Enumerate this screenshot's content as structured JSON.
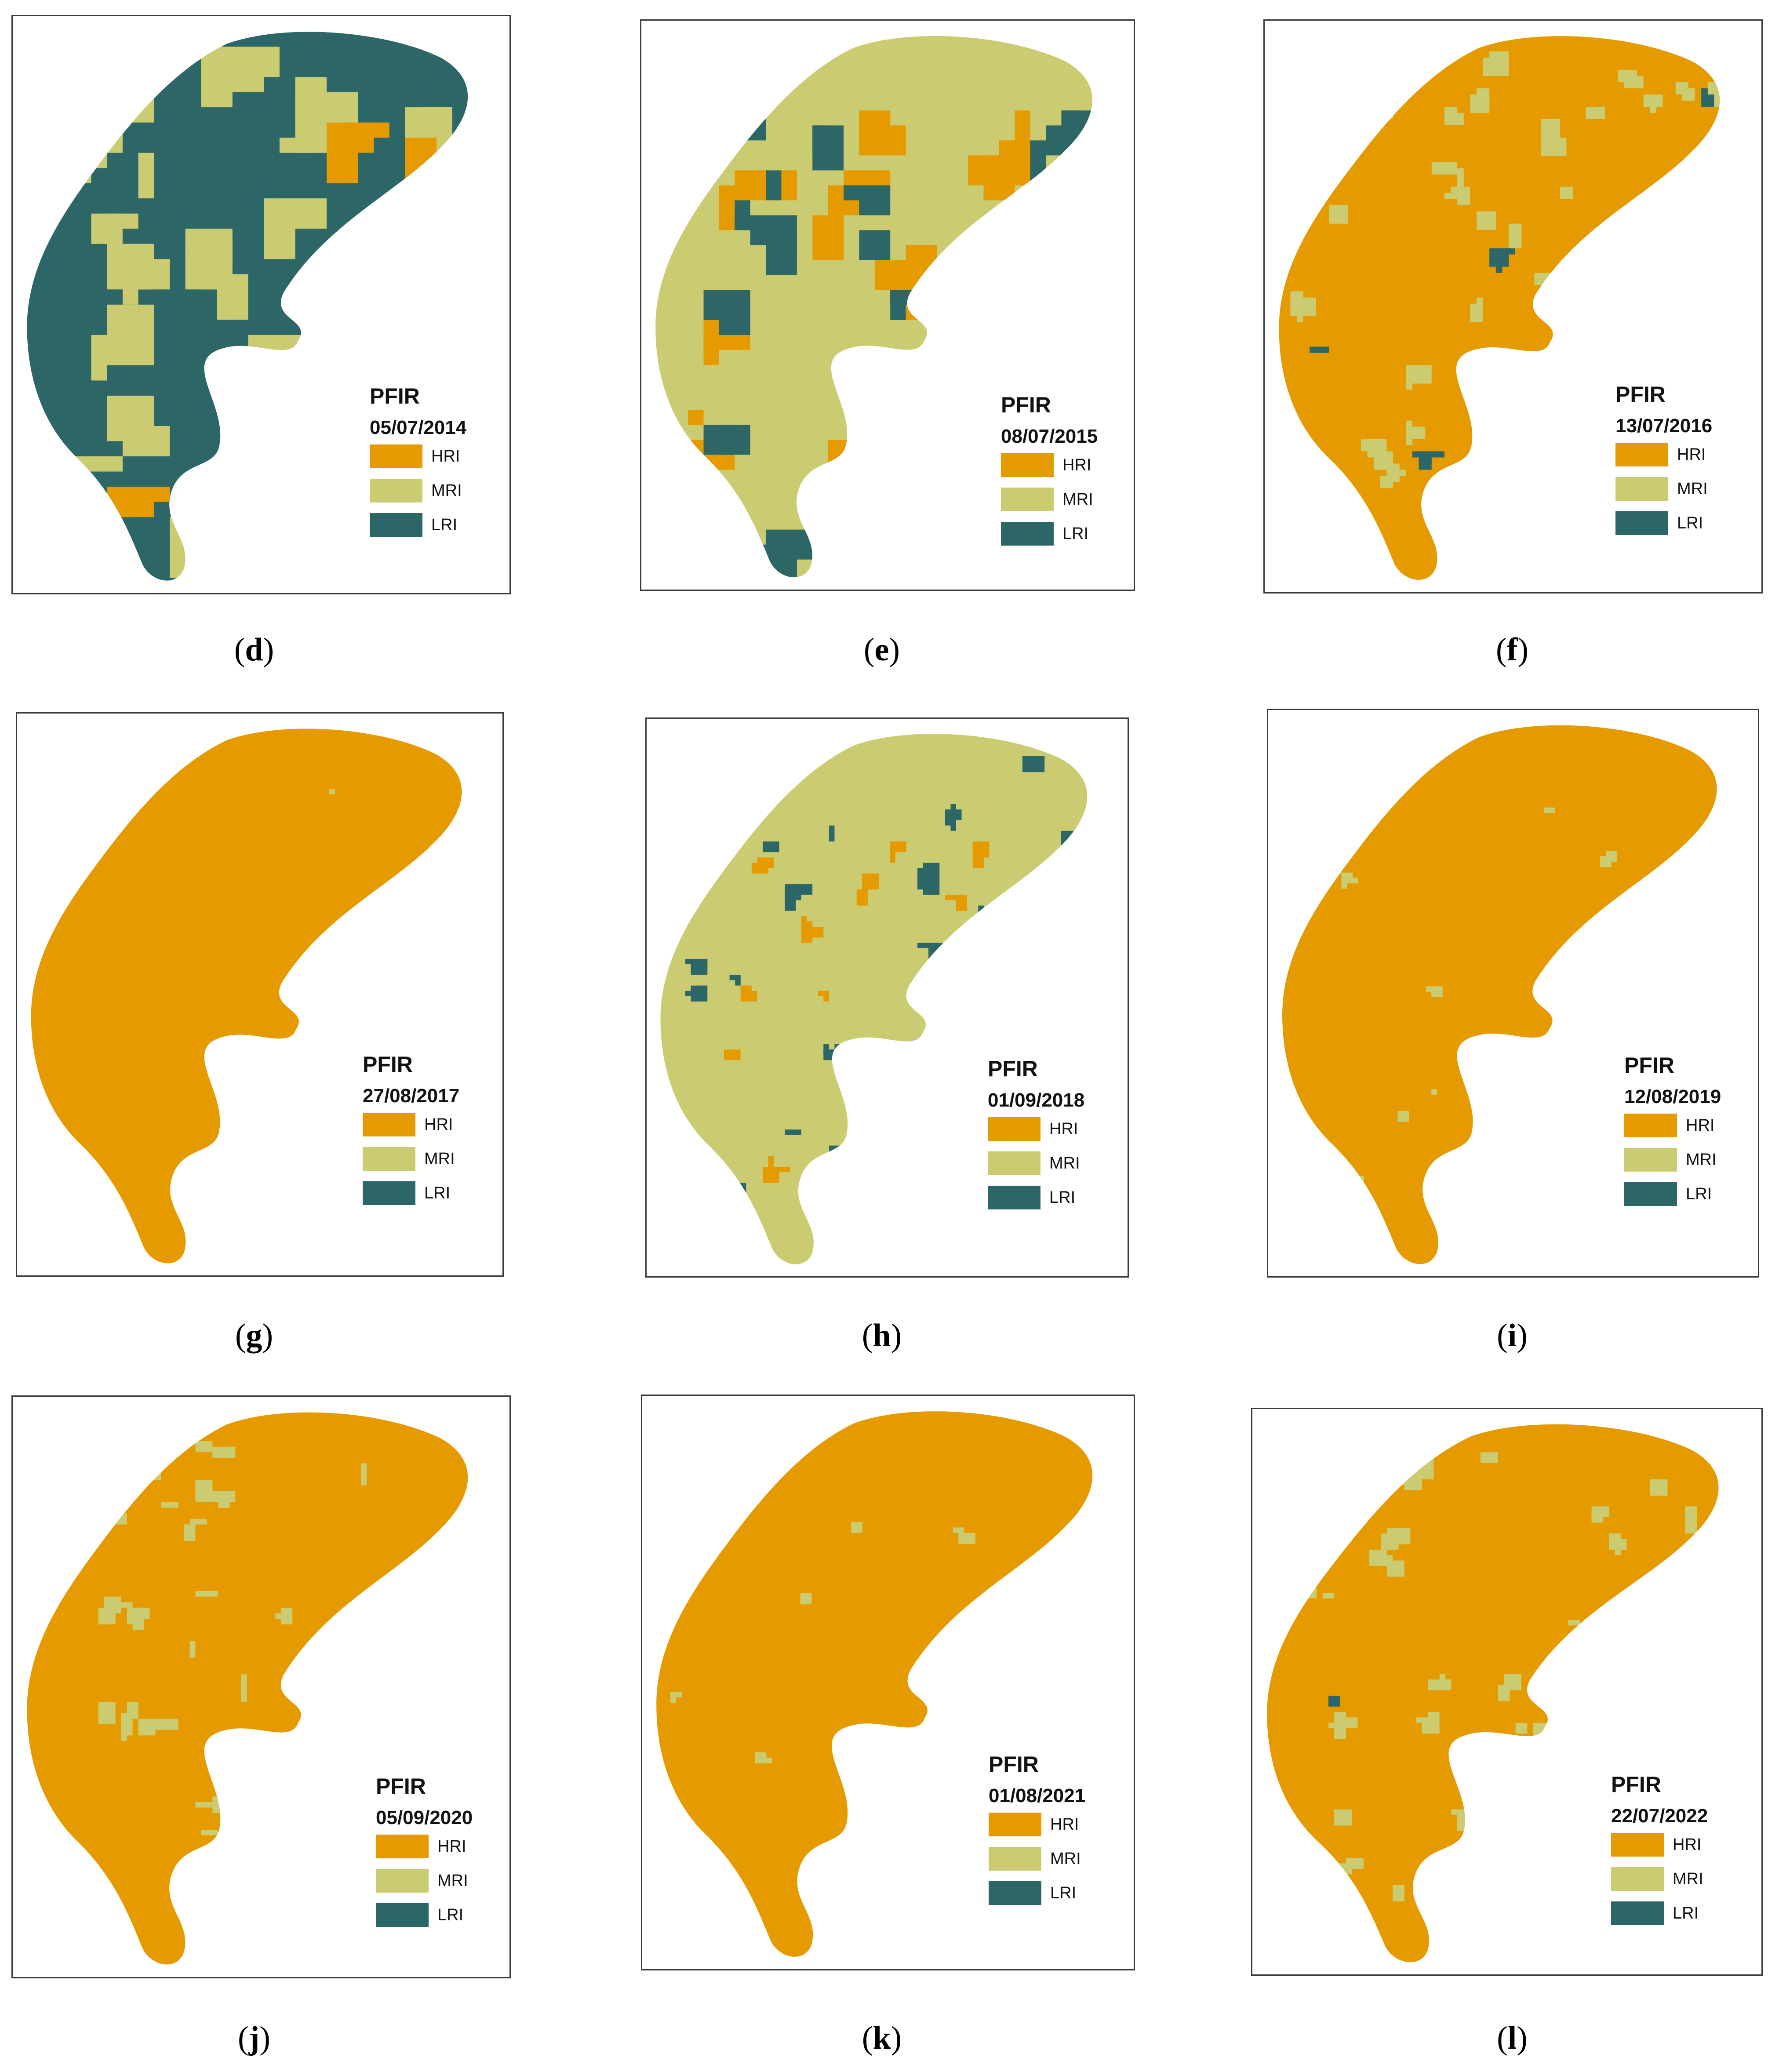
{
  "colors": {
    "HRI": "#e59a00",
    "MRI": "#cbcc72",
    "LRI": "#2d6667"
  },
  "legend_title": "PFIR",
  "legend_items": [
    {
      "key": "HRI",
      "label": "HRI"
    },
    {
      "key": "MRI",
      "label": "MRI"
    },
    {
      "key": "LRI",
      "label": "LRI"
    }
  ],
  "panels": [
    {
      "id": "d",
      "date": "05/07/2014",
      "dominant": "LRI",
      "secondary": "MRI",
      "tertiary": "HRI"
    },
    {
      "id": "e",
      "date": "08/07/2015",
      "dominant": "MRI",
      "secondary": "HRI",
      "tertiary": "LRI"
    },
    {
      "id": "f",
      "date": "13/07/2016",
      "dominant": "HRI",
      "secondary": "MRI",
      "tertiary": "LRI"
    },
    {
      "id": "g",
      "date": "27/08/2017",
      "dominant": "HRI",
      "secondary": "MRI",
      "tertiary": "LRI"
    },
    {
      "id": "h",
      "date": "01/09/2018",
      "dominant": "MRI",
      "secondary": "LRI",
      "tertiary": "HRI"
    },
    {
      "id": "i",
      "date": "12/08/2019",
      "dominant": "HRI",
      "secondary": "MRI",
      "tertiary": "LRI"
    },
    {
      "id": "j",
      "date": "05/09/2020",
      "dominant": "HRI",
      "secondary": "MRI",
      "tertiary": "LRI"
    },
    {
      "id": "k",
      "date": "01/08/2021",
      "dominant": "HRI",
      "secondary": "MRI",
      "tertiary": "LRI"
    },
    {
      "id": "l",
      "date": "22/07/2022",
      "dominant": "HRI",
      "secondary": "MRI",
      "tertiary": "LRI"
    }
  ],
  "captions": {
    "d": {
      "open": "(",
      "letter": "d",
      "close": ")"
    },
    "e": {
      "open": "(",
      "letter": "e",
      "close": ")"
    },
    "f": {
      "open": "(",
      "letter": "f",
      "close": ")"
    },
    "g": {
      "open": "(",
      "letter": "g",
      "close": ")"
    },
    "h": {
      "open": "(",
      "letter": "h",
      "close": ")"
    },
    "i": {
      "open": "(",
      "letter": "i",
      "close": ")"
    },
    "j": {
      "open": "(",
      "letter": "j",
      "close": ")"
    },
    "k": {
      "open": "(",
      "letter": "k",
      "close": ")"
    },
    "l": {
      "open": "(",
      "letter": "l",
      "close": ")"
    }
  }
}
